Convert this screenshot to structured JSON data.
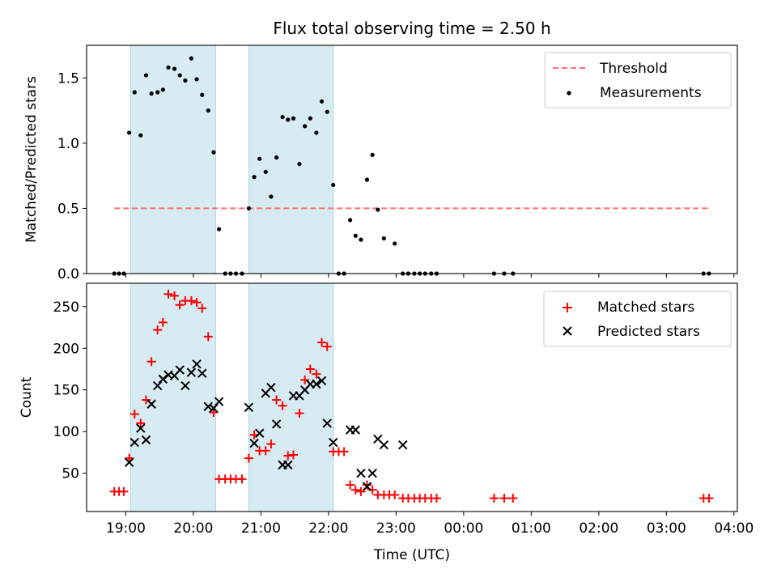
{
  "chart_data": [
    {
      "type": "scatter",
      "title": "Flux total observing time = 2.50 h",
      "xlabel": "",
      "ylabel": "Matched/Predicted stars",
      "xlim": [
        18.42,
        28.05
      ],
      "ylim": [
        0,
        1.75
      ],
      "yticks": [
        0.0,
        0.5,
        1.0,
        1.5
      ],
      "ytick_labels": [
        "0.0",
        "0.5",
        "1.0",
        "1.5"
      ],
      "shaded_spans": [
        [
          19.07,
          20.33
        ],
        [
          20.82,
          22.07
        ]
      ],
      "threshold": {
        "label": "Threshold",
        "value": 0.5,
        "x_range": [
          18.83,
          27.63
        ],
        "color": "#ff6e6e"
      },
      "legend": {
        "position": "top-right",
        "entries": [
          "Threshold",
          "Measurements"
        ]
      },
      "series": [
        {
          "name": "Measurements",
          "color": "#000000",
          "x": [
            18.83,
            18.9,
            18.97,
            19.05,
            19.13,
            19.22,
            19.3,
            19.38,
            19.47,
            19.55,
            19.63,
            19.72,
            19.8,
            19.88,
            19.97,
            20.05,
            20.13,
            20.22,
            20.3,
            20.38,
            20.47,
            20.55,
            20.63,
            20.72,
            20.82,
            20.9,
            20.98,
            21.07,
            21.15,
            21.23,
            21.32,
            21.4,
            21.48,
            21.57,
            21.65,
            21.73,
            21.82,
            21.9,
            21.98,
            22.07,
            22.15,
            22.23,
            22.32,
            22.4,
            22.48,
            22.57,
            22.65,
            22.73,
            22.82,
            22.98,
            23.1,
            23.18,
            23.27,
            23.35,
            23.43,
            23.52,
            23.6,
            24.45,
            24.6,
            24.73,
            27.55,
            27.63
          ],
          "y": [
            0,
            0,
            0,
            1.08,
            1.39,
            1.06,
            1.52,
            1.38,
            1.39,
            1.41,
            1.58,
            1.57,
            1.52,
            1.48,
            1.65,
            1.49,
            1.37,
            1.25,
            0.93,
            0.34,
            0,
            0,
            0,
            0,
            0.5,
            0.74,
            0.88,
            0.78,
            0.59,
            0.89,
            1.2,
            1.18,
            1.19,
            0.84,
            1.13,
            1.19,
            1.08,
            1.32,
            1.24,
            0.68,
            0,
            0,
            0.41,
            0.29,
            0.26,
            0.72,
            0.91,
            0.49,
            0.27,
            0.23,
            0,
            0,
            0,
            0,
            0,
            0,
            0,
            0,
            0,
            0,
            0,
            0
          ]
        }
      ]
    },
    {
      "type": "scatter",
      "title": "",
      "xlabel": "Time (UTC)",
      "ylabel": "Count",
      "xlim": [
        18.42,
        28.05
      ],
      "ylim": [
        4,
        278
      ],
      "yticks": [
        50,
        100,
        150,
        200,
        250
      ],
      "ytick_labels": [
        "50",
        "100",
        "150",
        "200",
        "250"
      ],
      "xticks": [
        19,
        20,
        21,
        22,
        23,
        24,
        25,
        26,
        27,
        28
      ],
      "xtick_labels": [
        "19:00",
        "20:00",
        "21:00",
        "22:00",
        "23:00",
        "00:00",
        "01:00",
        "02:00",
        "03:00",
        "04:00"
      ],
      "shaded_spans": [
        [
          19.07,
          20.33
        ],
        [
          20.82,
          22.07
        ]
      ],
      "legend": {
        "position": "top-right",
        "entries": [
          "Matched stars",
          "Predicted stars"
        ]
      },
      "series": [
        {
          "name": "Matched stars",
          "marker": "+",
          "color": "#ff0000",
          "x": [
            18.83,
            18.9,
            18.97,
            19.05,
            19.13,
            19.22,
            19.3,
            19.38,
            19.47,
            19.55,
            19.63,
            19.72,
            19.8,
            19.88,
            19.97,
            20.05,
            20.13,
            20.22,
            20.3,
            20.38,
            20.47,
            20.55,
            20.63,
            20.72,
            20.82,
            20.9,
            20.98,
            21.07,
            21.15,
            21.23,
            21.32,
            21.4,
            21.48,
            21.57,
            21.65,
            21.73,
            21.82,
            21.9,
            21.98,
            22.07,
            22.15,
            22.23,
            22.32,
            22.4,
            22.48,
            22.57,
            22.65,
            22.73,
            22.82,
            22.9,
            22.98,
            23.1,
            23.18,
            23.27,
            23.35,
            23.43,
            23.52,
            23.6,
            24.45,
            24.6,
            24.73,
            27.55,
            27.63
          ],
          "y": [
            28,
            28,
            28,
            68,
            121,
            110,
            138,
            184,
            222,
            231,
            265,
            263,
            252,
            257,
            257,
            255,
            248,
            214,
            123,
            43,
            43,
            43,
            43,
            43,
            68,
            96,
            77,
            77,
            85,
            138,
            131,
            71,
            72,
            122,
            162,
            175,
            169,
            207,
            202,
            76,
            76,
            76,
            36,
            30,
            28,
            36,
            30,
            24,
            24,
            24,
            24,
            20,
            20,
            20,
            20,
            20,
            20,
            20,
            20,
            20,
            20,
            20,
            20
          ]
        },
        {
          "name": "Predicted stars",
          "marker": "x",
          "color": "#000000",
          "x": [
            19.05,
            19.13,
            19.22,
            19.3,
            19.38,
            19.47,
            19.55,
            19.63,
            19.72,
            19.8,
            19.88,
            19.97,
            20.05,
            20.13,
            20.22,
            20.3,
            20.38,
            20.82,
            20.9,
            20.98,
            21.07,
            21.15,
            21.23,
            21.32,
            21.4,
            21.48,
            21.57,
            21.65,
            21.73,
            21.82,
            21.9,
            21.98,
            22.07,
            22.32,
            22.4,
            22.48,
            22.57,
            22.65,
            22.73,
            22.82,
            23.1
          ],
          "y": [
            63,
            87,
            104,
            90,
            133,
            155,
            163,
            168,
            167,
            174,
            155,
            171,
            181,
            170,
            130,
            128,
            136,
            129,
            86,
            98,
            146,
            153,
            109,
            60,
            60,
            143,
            143,
            150,
            157,
            157,
            161,
            110,
            87,
            102,
            102,
            50,
            34,
            50,
            91,
            84,
            84
          ]
        }
      ]
    }
  ]
}
